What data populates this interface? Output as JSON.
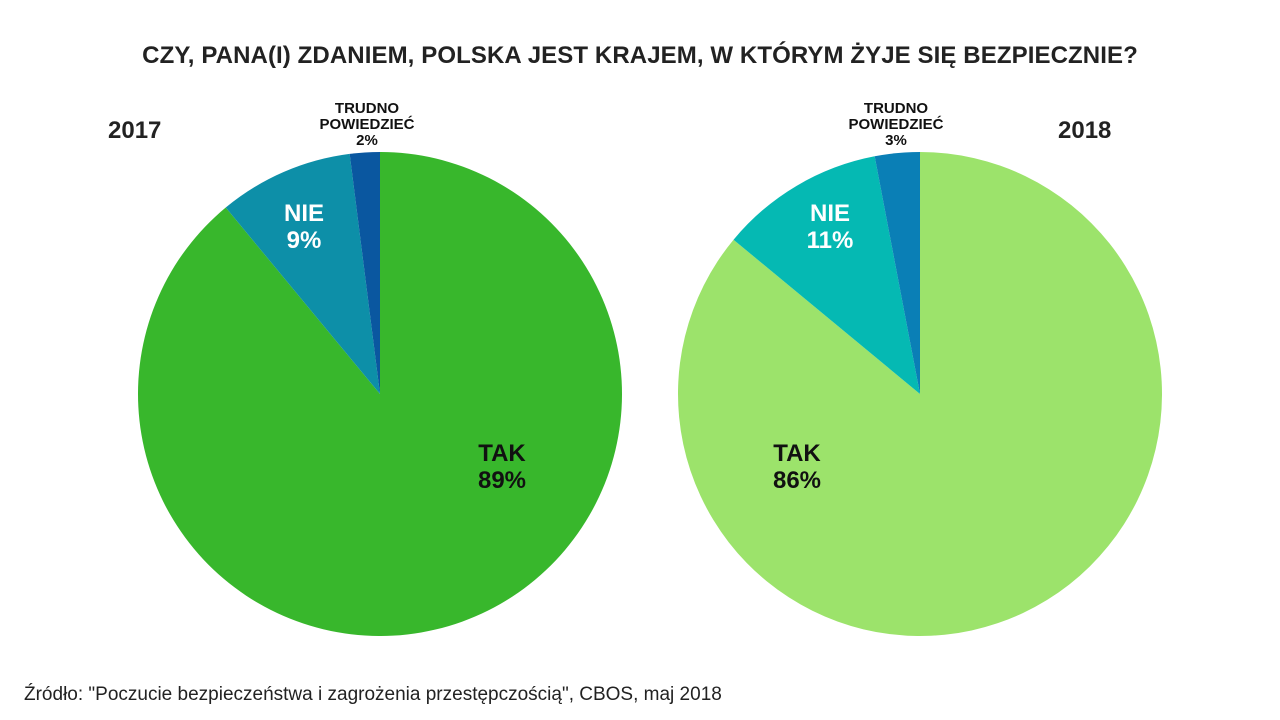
{
  "title": "CZY, PANA(I) ZDANIEM, POLSKA JEST KRAJEM, W KTÓRYM ŻYJE SIĘ BEZPIECZNIE?",
  "source": "Źródło: \"Poczucie bezpieczeństwa i zagrożenia przestępczością\", CBOS, maj 2018",
  "pies": [
    {
      "year": "2017",
      "slices": [
        {
          "name": "TAK",
          "value": "89%",
          "color": "#38b72c",
          "text_color": "#111111"
        },
        {
          "name": "NIE",
          "value": "9%",
          "color": "#0d8fa8",
          "text_color": "#ffffff"
        },
        {
          "name_line1": "TRUDNO",
          "name_line2": "POWIEDZIEĆ",
          "value": "2%",
          "color": "#0a57a0"
        }
      ]
    },
    {
      "year": "2018",
      "slices": [
        {
          "name": "TAK",
          "value": "86%",
          "color": "#9ce36b",
          "text_color": "#111111"
        },
        {
          "name": "NIE",
          "value": "11%",
          "color": "#05b9b3",
          "text_color": "#ffffff"
        },
        {
          "name_line1": "TRUDNO",
          "name_line2": "POWIEDZIEĆ",
          "value": "3%",
          "color": "#0a7fb6"
        }
      ]
    }
  ],
  "chart_data": [
    {
      "type": "pie",
      "title": "CZY, PANA(I) ZDANIEM, POLSKA JEST KRAJEM, W KTÓRYM ŻYJE SIĘ BEZPIECZNIE? — 2017",
      "categories": [
        "TAK",
        "NIE",
        "TRUDNO POWIEDZIEĆ"
      ],
      "values": [
        89,
        9,
        2
      ],
      "colors": [
        "#38b72c",
        "#0d8fa8",
        "#0a57a0"
      ]
    },
    {
      "type": "pie",
      "title": "CZY, PANA(I) ZDANIEM, POLSKA JEST KRAJEM, W KTÓRYM ŻYJE SIĘ BEZPIECZNIE? — 2018",
      "categories": [
        "TAK",
        "NIE",
        "TRUDNO POWIEDZIEĆ"
      ],
      "values": [
        86,
        11,
        3
      ],
      "colors": [
        "#9ce36b",
        "#05b9b3",
        "#0a7fb6"
      ]
    }
  ]
}
